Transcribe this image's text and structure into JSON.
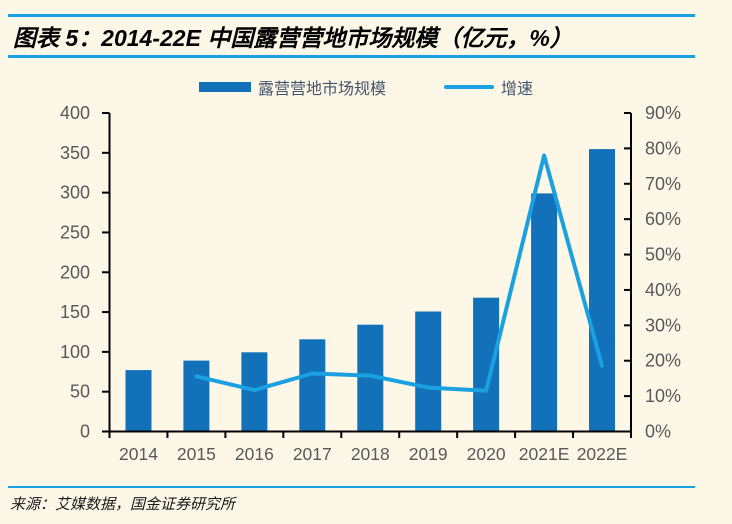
{
  "header": {
    "title": "图表 5：2014-22E 中国露营营地市场规模（亿元，%）"
  },
  "legend": {
    "bar_label": "露营营地市场规模",
    "line_label": "增速"
  },
  "footer": {
    "source": "来源：艾媒数据，国金证券研究所"
  },
  "colors": {
    "background": "#FDF7E8",
    "bar": "#1271B8",
    "line": "#1BA0E1",
    "rule": "#18A2E3",
    "axis": "#000000",
    "tick_label": "#595959",
    "legend_text": "#44546A"
  },
  "chart_data": {
    "type": "bar",
    "subtype": "bar-with-line-dual-axis",
    "title": "2014-22E 中国露营营地市场规模（亿元，%）",
    "categories": [
      "2014",
      "2015",
      "2016",
      "2017",
      "2018",
      "2019",
      "2020",
      "2021E",
      "2022E"
    ],
    "series": [
      {
        "name": "露营营地市场规模",
        "type": "bar",
        "axis": "left",
        "unit": "亿元",
        "values": [
          77.1,
          89.1,
          99.5,
          115.8,
          134.1,
          150.7,
          168.0,
          299.0,
          354.6
        ]
      },
      {
        "name": "增速",
        "type": "line",
        "axis": "right",
        "unit": "%",
        "values": [
          null,
          15.6,
          11.7,
          16.4,
          15.8,
          12.4,
          11.5,
          78.0,
          18.6
        ]
      }
    ],
    "left_axis": {
      "min": 0,
      "max": 400,
      "step": 50,
      "tick_labels": [
        "0",
        "50",
        "100",
        "150",
        "200",
        "250",
        "300",
        "350",
        "400"
      ]
    },
    "right_axis": {
      "min": 0,
      "max": 90,
      "step": 10,
      "tick_labels": [
        "0%",
        "10%",
        "20%",
        "30%",
        "40%",
        "50%",
        "60%",
        "70%",
        "80%",
        "90%"
      ]
    },
    "grid": false,
    "legend_position": "top"
  }
}
